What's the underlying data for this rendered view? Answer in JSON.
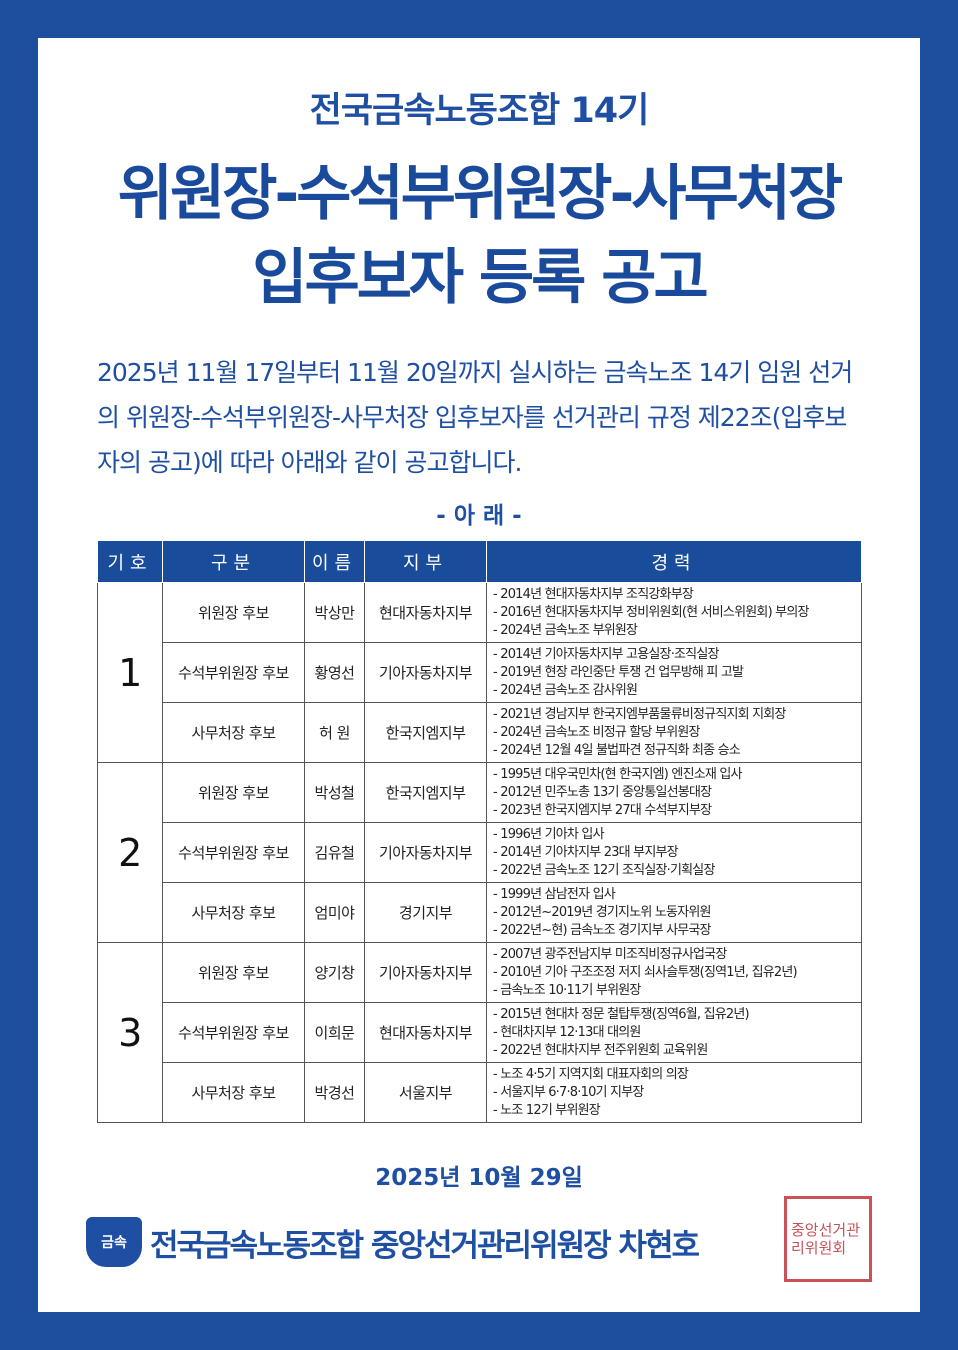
{
  "colors": {
    "brand_blue": "#1d4f9f",
    "header_blue": "#1a4c9c",
    "seal_red": "#c0333a"
  },
  "title_line1": "전국금속노동조합 14기",
  "title_line2": "위원장-수석부위원장-사무처장",
  "title_line3": "입후보자 등록 공고",
  "intro": "2025년 11월 17일부터 11월 20일까지 실시하는 금속노조 14기 임원 선거의 위원장-수석부위원장-사무처장 입후보자를 선거관리 규정 제22조(입후보자의 공고)에 따라 아래와 같이 공고합니다.",
  "arae": "- 아 래 -",
  "table": {
    "headers": [
      "기호",
      "구분",
      "이름",
      "지부",
      "경력"
    ],
    "rows": [
      {
        "no": "1",
        "role": "위원장 후보",
        "name": "박상만",
        "branch": "현대자동차지부",
        "career": [
          "- 2014년 현대자동차지부 조직강화부장",
          "- 2016년 현대자동차지부 정비위원회(현 서비스위원회) 부의장",
          "- 2024년 금속노조 부위원장"
        ]
      },
      {
        "role": "수석부위원장 후보",
        "name": "황영선",
        "branch": "기아자동차지부",
        "career": [
          "- 2014년 기아자동차지부 고용실장·조직실장",
          "- 2019년 현장 라인중단 투쟁 건 업무방해 피 고발",
          "- 2024년 금속노조 감사위원"
        ]
      },
      {
        "role": "사무처장 후보",
        "name": "허 원",
        "branch": "한국지엠지부",
        "career": [
          "- 2021년 경남지부 한국지엠부품물류비정규직지회 지회장",
          "- 2024년 금속노조 비정규 할당 부위원장",
          "- 2024년 12월 4일 불법파견 정규직화 최종 승소"
        ]
      },
      {
        "no": "2",
        "role": "위원장 후보",
        "name": "박성철",
        "branch": "한국지엠지부",
        "career": [
          "- 1995년 대우국민차(현 한국지엠) 엔진소재 입사",
          "- 2012년 민주노총 13기 중앙통일선봉대장",
          "- 2023년 한국지엠지부 27대 수석부지부장"
        ]
      },
      {
        "role": "수석부위원장 후보",
        "name": "김유철",
        "branch": "기아자동차지부",
        "career": [
          "- 1996년 기아차 입사",
          "- 2014년 기아차지부 23대 부지부장",
          "- 2022년 금속노조 12기 조직실장·기획실장"
        ]
      },
      {
        "role": "사무처장 후보",
        "name": "엄미야",
        "branch": "경기지부",
        "career": [
          "- 1999년 삼남전자 입사",
          "- 2012년~2019년 경기지노위 노동자위원",
          "- 2022년~현) 금속노조 경기지부 사무국장"
        ]
      },
      {
        "no": "3",
        "role": "위원장 후보",
        "name": "양기창",
        "branch": "기아자동차지부",
        "career": [
          "- 2007년 광주전남지부 미조직비정규사업국장",
          "- 2010년 기아 구조조정 저지 쇠사슬투쟁(징역1년, 집유2년)",
          "- 금속노조 10·11기 부위원장"
        ]
      },
      {
        "role": "수석부위원장 후보",
        "name": "이희문",
        "branch": "현대자동차지부",
        "career": [
          "- 2015년 현대차 정문 철탑투쟁(징역6월, 집유2년)",
          "- 현대차지부 12·13대 대의원",
          "- 2022년 현대차지부 전주위원회 교육위원"
        ]
      },
      {
        "role": "사무처장 후보",
        "name": "박경선",
        "branch": "서울지부",
        "career": [
          "- 노조 4·5기 지역지회 대표자회의 의장",
          "- 서울지부 6·7·8·10기 지부장",
          "- 노조 12기 부위원장"
        ]
      }
    ]
  },
  "date": "2025년 10월 29일",
  "footer": {
    "logo_text": "금속",
    "signature": "전국금속노동조합 중앙선거관리위원장 차현호",
    "seal_text": "전국금속노동조합중앙선거관리위원회"
  }
}
